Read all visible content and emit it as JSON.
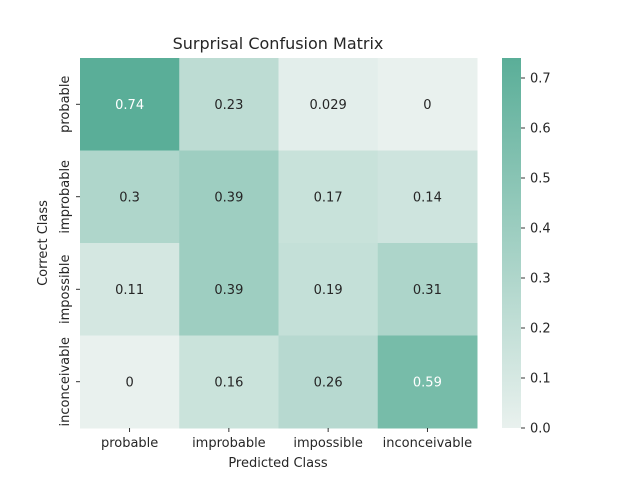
{
  "chart_data": {
    "type": "heatmap",
    "title": "Surprisal Confusion Matrix",
    "xlabel": "Predicted Class",
    "ylabel": "Correct Class",
    "x_categories": [
      "probable",
      "improbable",
      "impossible",
      "inconceivable"
    ],
    "y_categories": [
      "probable",
      "improbable",
      "impossible",
      "inconceivable"
    ],
    "values": [
      [
        0.74,
        0.23,
        0.029,
        0
      ],
      [
        0.3,
        0.39,
        0.17,
        0.14
      ],
      [
        0.11,
        0.39,
        0.19,
        0.31
      ],
      [
        0,
        0.16,
        0.26,
        0.59
      ]
    ],
    "value_labels": [
      [
        "0.74",
        "0.23",
        "0.029",
        "0"
      ],
      [
        "0.3",
        "0.39",
        "0.17",
        "0.14"
      ],
      [
        "0.11",
        "0.39",
        "0.19",
        "0.31"
      ],
      [
        "0",
        "0.16",
        "0.26",
        "0.59"
      ]
    ],
    "colorbar": {
      "range": [
        0,
        0.74
      ],
      "ticks": [
        "0.0",
        "0.1",
        "0.2",
        "0.3",
        "0.4",
        "0.5",
        "0.6",
        "0.7"
      ],
      "low_color": "#e9f1ee",
      "high_color": "#5aae98"
    }
  }
}
